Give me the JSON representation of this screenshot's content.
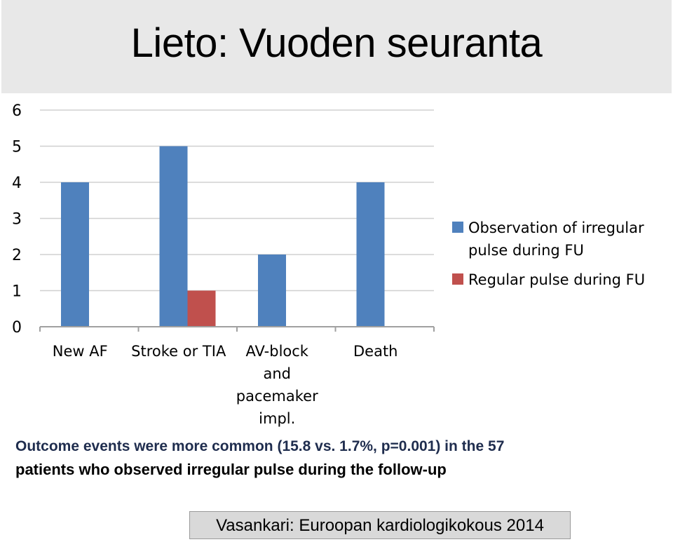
{
  "slide": {
    "title": "Lieto: Vuoden seuranta",
    "caption_line1": "Outcome events were more common (15.8 vs. 1.7%, p=0.001) in the 57",
    "caption_line2": "patients who observed irregular pulse during the follow-up",
    "citation": "Vasankari: Euroopan kardiologikokous 2014"
  },
  "chart_data": {
    "type": "bar",
    "categories": [
      [
        "New AF"
      ],
      [
        "Stroke or TIA"
      ],
      [
        "AV-block",
        "and",
        "pacemaker",
        "impl."
      ],
      [
        "Death"
      ]
    ],
    "series": [
      {
        "name": "Observation of irregular pulse during FU",
        "legend_lines": [
          "Observation of irregular",
          "pulse during FU"
        ],
        "color": "#4f81bd",
        "values": [
          4,
          5,
          2,
          4
        ]
      },
      {
        "name": "Regular pulse during FU",
        "legend_lines": [
          "Regular pulse during FU"
        ],
        "color": "#c0504d",
        "values": [
          0,
          1,
          0,
          0
        ]
      }
    ],
    "y_ticks": [
      0,
      1,
      2,
      3,
      4,
      5,
      6
    ],
    "ylim": [
      0,
      6
    ],
    "grid": true,
    "legend_position": "right"
  }
}
